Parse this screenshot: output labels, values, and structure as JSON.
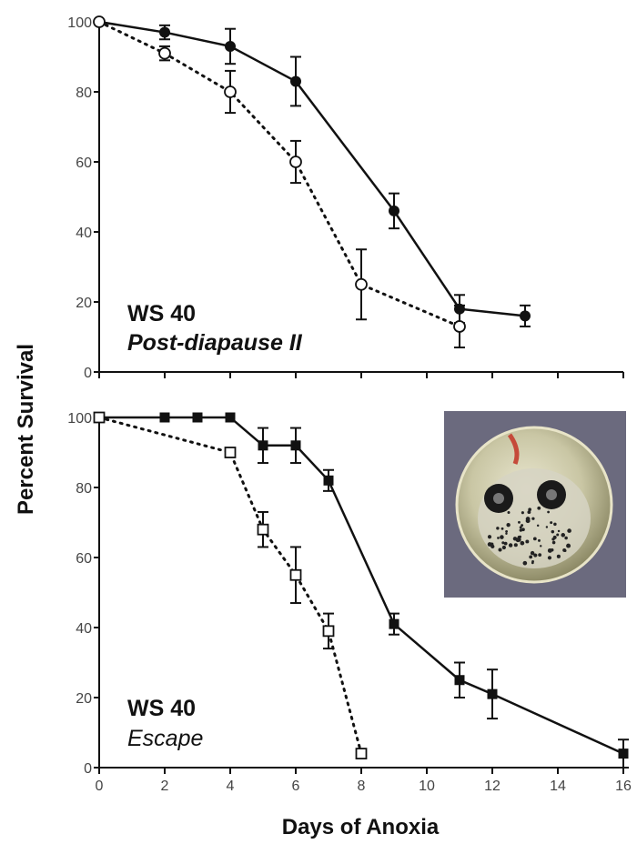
{
  "chart_data": [
    {
      "type": "line",
      "xlabel": "Days of Anoxia",
      "ylabel": "Percent Survival",
      "xlim": [
        0,
        16
      ],
      "ylim": [
        0,
        100
      ],
      "xticks": [
        "0",
        "2",
        "4",
        "6",
        "8",
        "10",
        "12",
        "14",
        "16"
      ],
      "yticks": [
        "0",
        "20",
        "40",
        "60",
        "80",
        "100"
      ],
      "annotation": {
        "line1": "WS 40",
        "line2": "Post-diapause II"
      },
      "grid": false,
      "series": [
        {
          "marker": "filled-circle",
          "line": "solid",
          "color": "#111111",
          "x": [
            0,
            2,
            4,
            6,
            9,
            11,
            13
          ],
          "y": [
            100,
            97,
            93,
            83,
            46,
            18,
            16
          ],
          "err": [
            0,
            2,
            5,
            7,
            5,
            4,
            3
          ]
        },
        {
          "marker": "open-circle",
          "line": "dotted",
          "color": "#111111",
          "x": [
            0,
            2,
            4,
            6,
            8,
            11
          ],
          "y": [
            100,
            91,
            80,
            60,
            25,
            13
          ],
          "err": [
            0,
            2,
            6,
            6,
            10,
            6
          ]
        }
      ]
    },
    {
      "type": "line",
      "xlabel": "Days of Anoxia",
      "ylabel": "Percent Survival",
      "xlim": [
        0,
        16
      ],
      "ylim": [
        0,
        100
      ],
      "xticks": [
        "0",
        "2",
        "4",
        "6",
        "8",
        "10",
        "12",
        "14",
        "16"
      ],
      "yticks": [
        "0",
        "20",
        "40",
        "60",
        "80",
        "100"
      ],
      "annotation": {
        "line1": "WS 40",
        "line2": "Escape"
      },
      "grid": false,
      "inset": {
        "description": "tadpole embryo photograph"
      },
      "series": [
        {
          "marker": "filled-square",
          "line": "solid",
          "color": "#111111",
          "x": [
            0,
            2,
            3,
            4,
            5,
            6,
            7,
            9,
            11,
            12,
            16
          ],
          "y": [
            100,
            100,
            100,
            100,
            92,
            92,
            82,
            41,
            25,
            21,
            4
          ],
          "err": [
            0,
            0,
            0,
            0,
            5,
            5,
            3,
            3,
            5,
            7,
            4
          ]
        },
        {
          "marker": "open-square",
          "line": "dotted",
          "color": "#111111",
          "x": [
            0,
            4,
            5,
            6,
            7,
            8
          ],
          "y": [
            100,
            90,
            68,
            55,
            39,
            4
          ],
          "err": [
            0,
            0,
            5,
            8,
            5,
            0
          ]
        }
      ]
    }
  ],
  "labels": {
    "ylabel": "Percent Survival",
    "xlabel": "Days of Anoxia"
  }
}
